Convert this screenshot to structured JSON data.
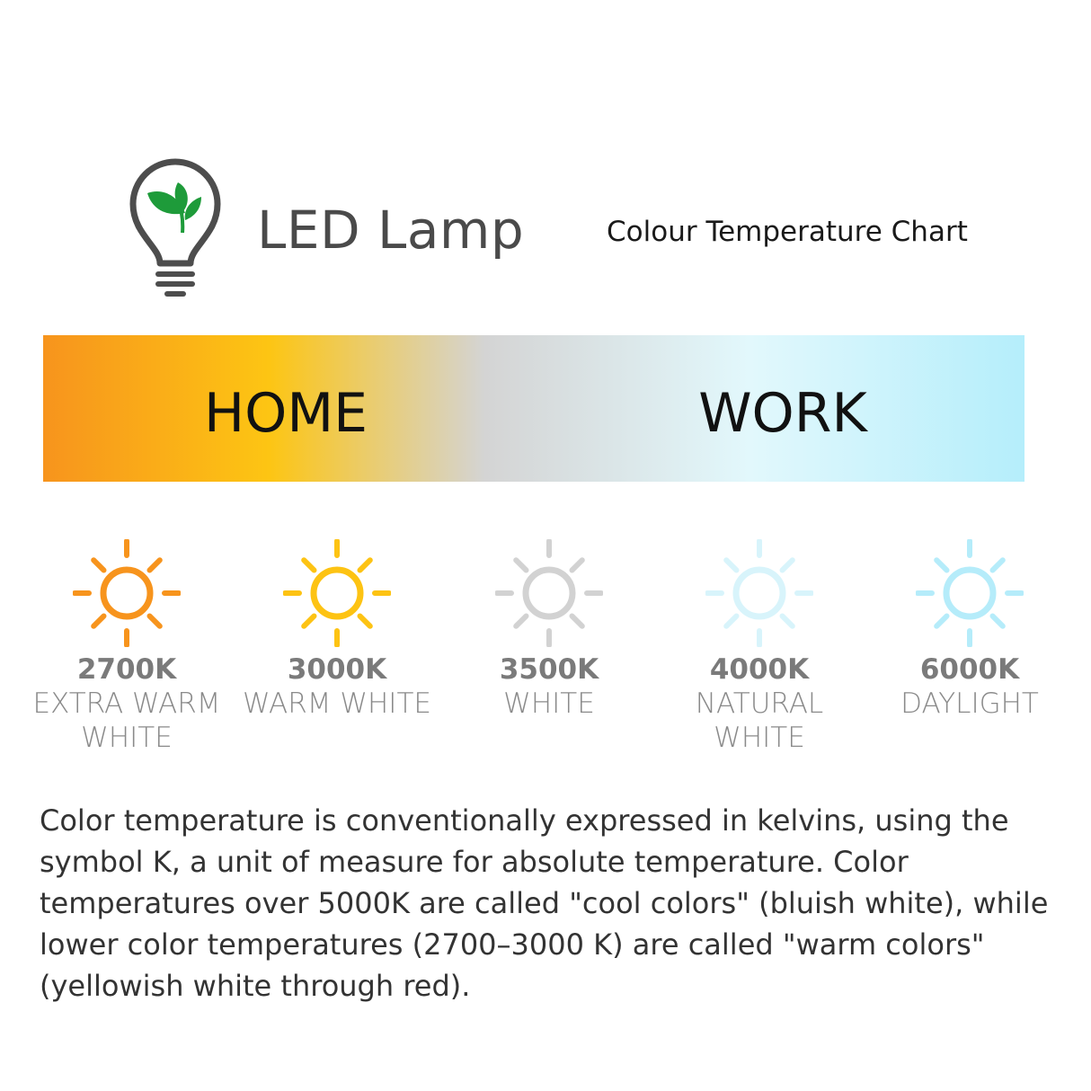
{
  "header": {
    "title": "LED Lamp",
    "subtitle": "Colour Temperature Chart",
    "logo_icon": "lightbulb-with-leaves-icon"
  },
  "gradient_bar": {
    "left_label": "HOME",
    "right_label": "WORK",
    "colors": [
      "#F7941D",
      "#FDC513",
      "#D4D4D4",
      "#E2F8FC",
      "#B5EEFB"
    ]
  },
  "temperatures": [
    {
      "kelvin": "2700K",
      "name": "EXTRA WARM WHITE",
      "color": "#F7941D"
    },
    {
      "kelvin": "3000K",
      "name": "WARM WHITE",
      "color": "#FDC313"
    },
    {
      "kelvin": "3500K",
      "name": "WHITE",
      "color": "#D2D2D2"
    },
    {
      "kelvin": "4000K",
      "name": "NATURAL WHITE",
      "color": "#D8F4FB"
    },
    {
      "kelvin": "6000K",
      "name": "DAYLIGHT",
      "color": "#B5ECFA"
    }
  ],
  "description": "Color temperature is conventionally expressed in kelvins, using the symbol K, a unit of measure for absolute temperature. Color temperatures over 5000K are called \"cool colors\" (bluish white), while lower color temperatures (2700–3000 K) are called \"warm colors\" (yellowish white through red)."
}
